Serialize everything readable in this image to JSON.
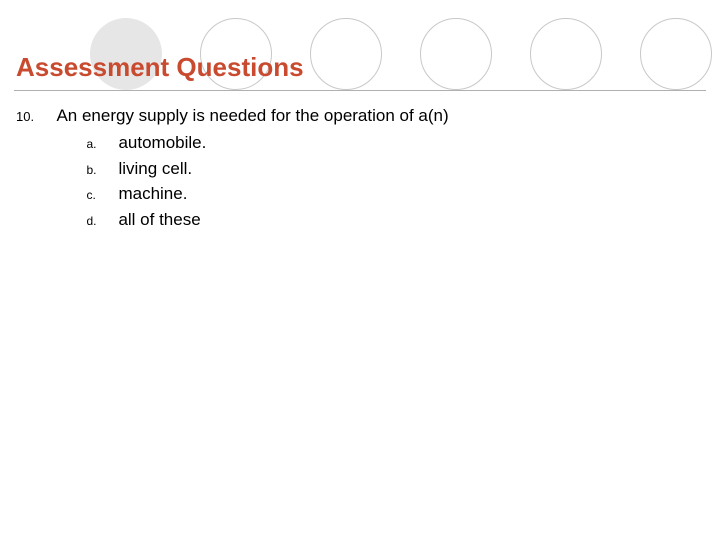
{
  "heading": "Assessment Questions",
  "question": {
    "number": "10.",
    "stem": "An energy supply is needed for the operation of a(n)",
    "choices": [
      {
        "letter": "a.",
        "text": "automobile."
      },
      {
        "letter": "b.",
        "text": "living cell."
      },
      {
        "letter": "c.",
        "text": "machine."
      },
      {
        "letter": "d.",
        "text": "all of these"
      }
    ]
  },
  "style": {
    "heading_color": "#c84a2f",
    "text_color": "#000000",
    "circle_fill": "#e6e6e6",
    "circle_outline": "#c8c8c8",
    "rule_color": "#b0b0b0",
    "heading_fontsize": 26,
    "stem_fontsize": 17,
    "letter_fontsize": 12,
    "circle_diameter": 72
  }
}
